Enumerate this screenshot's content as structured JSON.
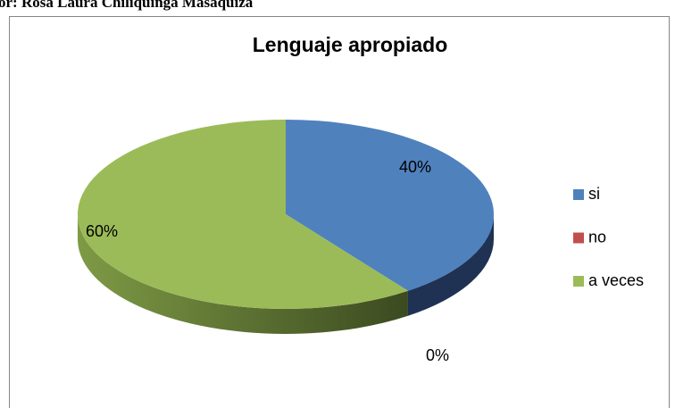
{
  "header": {
    "text": "or: Rosa  Laura Chiliquinga Masaquiza"
  },
  "chart_data": {
    "type": "pie",
    "title": "Lenguaje apropiado",
    "categories": [
      "si",
      "no",
      "a veces"
    ],
    "values": [
      40,
      0,
      60
    ],
    "value_labels": [
      "40%",
      "0%",
      "60%"
    ],
    "colors": [
      "#4f81bd",
      "#c0504d",
      "#9bbb59"
    ],
    "legend": "right"
  }
}
